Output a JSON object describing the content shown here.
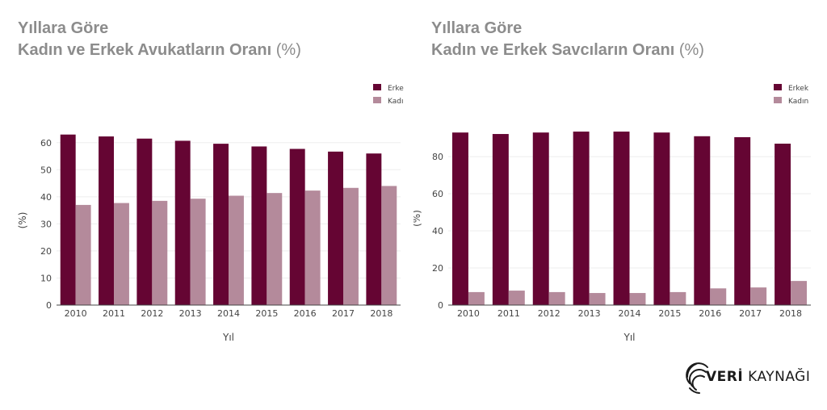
{
  "colors": {
    "erkek": "#650533",
    "kadin": "#b48a9b",
    "axis": "#444444",
    "grid": "#eeeeee",
    "title": "#8c8c8c"
  },
  "logo": {
    "part1": "VERİ",
    "part2": "KAYNAĞI",
    "icon": "fingerprint-icon"
  },
  "chart_data": [
    {
      "type": "bar",
      "title": {
        "line1": "Yıllara Göre",
        "line2": "Kadın ve Erkek Avukatların Oranı",
        "unit": "(%)"
      },
      "xlabel": "Yıl",
      "ylabel": "(%)",
      "categories": [
        "2010",
        "2011",
        "2012",
        "2013",
        "2014",
        "2015",
        "2016",
        "2017",
        "2018"
      ],
      "series": [
        {
          "name": "Erkek",
          "values": [
            63,
            62.3,
            61.5,
            60.7,
            59.6,
            58.6,
            57.7,
            56.7,
            56
          ]
        },
        {
          "name": "Kadın",
          "values": [
            37,
            37.7,
            38.5,
            39.3,
            40.4,
            41.4,
            42.3,
            43.3,
            44
          ]
        }
      ],
      "ylim": [
        0,
        65
      ],
      "yticks": [
        0,
        10,
        20,
        30,
        40,
        50,
        60
      ],
      "legend": "top-right",
      "grid": true
    },
    {
      "type": "bar",
      "title": {
        "line1": "Yıllara Göre",
        "line2": "Kadın ve Erkek Savcıların Oranı",
        "unit": "(%)"
      },
      "xlabel": "Yıl",
      "ylabel": "(%)",
      "categories": [
        "2010",
        "2011",
        "2012",
        "2013",
        "2014",
        "2015",
        "2016",
        "2017",
        "2018"
      ],
      "series": [
        {
          "name": "Erkek",
          "values": [
            93,
            92.2,
            93,
            93.5,
            93.5,
            93,
            91,
            90.5,
            87
          ]
        },
        {
          "name": "Kadın",
          "values": [
            7,
            7.8,
            7,
            6.5,
            6.5,
            7,
            9,
            9.5,
            13
          ]
        }
      ],
      "ylim": [
        0,
        97
      ],
      "yticks": [
        0,
        20,
        40,
        60,
        80
      ],
      "legend": "top-right",
      "grid": true
    }
  ]
}
